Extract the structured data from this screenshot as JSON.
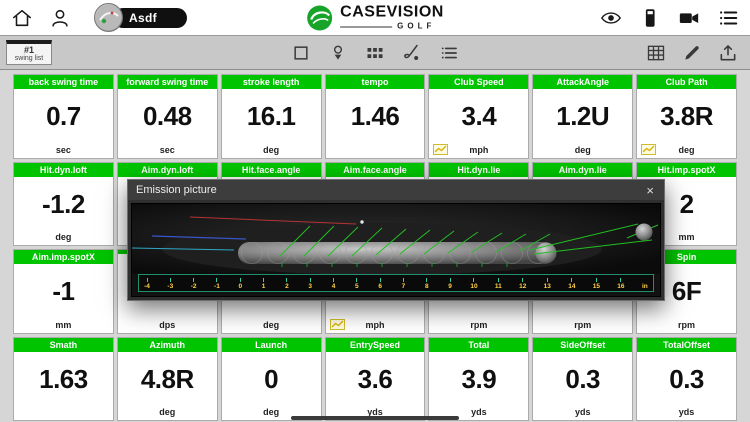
{
  "header": {
    "player_name": "Asdf",
    "brand": {
      "name": "CASEVISION",
      "sub": "GOLF"
    }
  },
  "toolbar": {
    "swing_number": "#1",
    "swing_list_label": "swing list"
  },
  "icons": {
    "top_left": [
      "home-icon",
      "person-icon",
      "avatar"
    ],
    "top_right": [
      "eye-icon",
      "device-icon",
      "video-camera-icon",
      "menu-icon"
    ],
    "subbar_center": [
      "square-icon",
      "ball-tee-icon",
      "grid-icon",
      "club-ball-icon",
      "list-icon"
    ],
    "subbar_right": [
      "table-icon",
      "pencil-icon",
      "upload-icon"
    ]
  },
  "colors": {
    "card_header_green": "#00c400",
    "brand_green": "#18a428",
    "chart_icon_yellow": "#d8b000",
    "ruler_number_yellow": "#ffd24a",
    "ruler_tick_teal": "#2fd0a0"
  },
  "cards": [
    {
      "title": "back swing time",
      "value": "0.7",
      "unit": "sec",
      "chart": false
    },
    {
      "title": "forward swing time",
      "value": "0.48",
      "unit": "sec",
      "chart": false
    },
    {
      "title": "stroke length",
      "value": "16.1",
      "unit": "deg",
      "chart": false
    },
    {
      "title": "tempo",
      "value": "1.46",
      "unit": "",
      "chart": false
    },
    {
      "title": "Club Speed",
      "value": "3.4",
      "unit": "mph",
      "chart": true
    },
    {
      "title": "AttackAngle",
      "value": "1.2U",
      "unit": "deg",
      "chart": false
    },
    {
      "title": "Club Path",
      "value": "3.8R",
      "unit": "deg",
      "chart": true
    },
    {
      "title": "Hit.dyn.loft",
      "value": "-1.2",
      "unit": "deg",
      "chart": false
    },
    {
      "title": "Aim.dyn.loft",
      "value": "",
      "unit": "",
      "chart": false
    },
    {
      "title": "Hit.face.angle",
      "value": "",
      "unit": "",
      "chart": false
    },
    {
      "title": "Aim.face.angle",
      "value": "",
      "unit": "",
      "chart": false
    },
    {
      "title": "Hit.dyn.lie",
      "value": "",
      "unit": "",
      "chart": false
    },
    {
      "title": "Aim.dyn.lie",
      "value": "",
      "unit": "",
      "chart": false
    },
    {
      "title": "Hit.imp.spotX",
      "value": "2",
      "unit": "mm",
      "chart": false
    },
    {
      "title": "Aim.imp.spotX",
      "value": "-1",
      "unit": "mm",
      "chart": false
    },
    {
      "title": "",
      "value": "",
      "unit": "dps",
      "chart": false
    },
    {
      "title": "",
      "value": "",
      "unit": "deg",
      "chart": false
    },
    {
      "title": "",
      "value": "",
      "unit": "mph",
      "chart": true
    },
    {
      "title": "",
      "value": "",
      "unit": "rpm",
      "chart": false
    },
    {
      "title": "",
      "value": "",
      "unit": "rpm",
      "chart": false
    },
    {
      "title": "Spin",
      "value": "6F",
      "unit": "rpm",
      "chart": false
    },
    {
      "title": "Smath",
      "value": "1.63",
      "unit": "",
      "chart": false
    },
    {
      "title": "Azimuth",
      "value": "4.8R",
      "unit": "deg",
      "chart": false
    },
    {
      "title": "Launch",
      "value": "0",
      "unit": "deg",
      "chart": false
    },
    {
      "title": "EntrySpeed",
      "value": "3.6",
      "unit": "yds",
      "chart": false
    },
    {
      "title": "Total",
      "value": "3.9",
      "unit": "yds",
      "chart": false
    },
    {
      "title": "SideOffset",
      "value": "0.3",
      "unit": "yds",
      "chart": false
    },
    {
      "title": "TotalOffset",
      "value": "0.3",
      "unit": "yds",
      "chart": false
    }
  ],
  "modal": {
    "title": "Emission picture",
    "close_label": "×",
    "ruler": [
      "-4",
      "-3",
      "-2",
      "-1",
      "0",
      "1",
      "2",
      "3",
      "4",
      "5",
      "6",
      "7",
      "8",
      "9",
      "10",
      "11",
      "12",
      "13",
      "14",
      "15",
      "16"
    ],
    "ruler_unit": "in"
  }
}
